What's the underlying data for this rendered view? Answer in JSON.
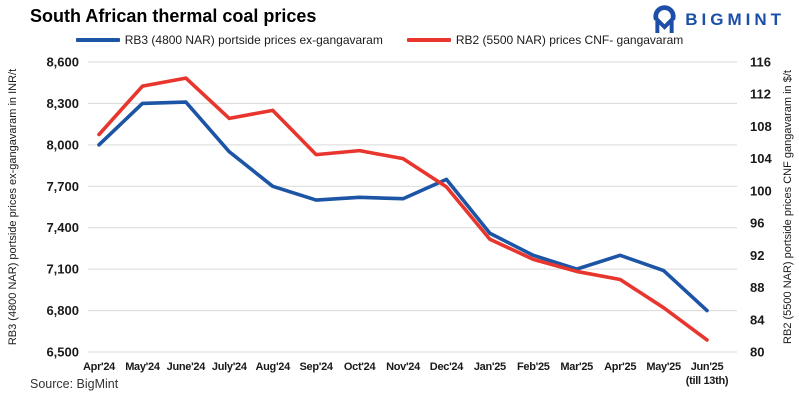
{
  "header": {
    "title": "South African thermal coal prices",
    "brand": "BIGMINT"
  },
  "source": "Source: BigMint",
  "colors": {
    "rb3_blue": "#1C55A5",
    "rb2_red": "#E8362E",
    "brand_blue": "#1D4FA8",
    "grid": "#DADADA",
    "text": "#1A1A1A"
  },
  "chart_data": {
    "type": "line",
    "title": "South African thermal coal prices",
    "grid": true,
    "legend_position": "top",
    "categories": [
      "Apr'24",
      "May'24",
      "June'24",
      "July'24",
      "Aug'24",
      "Sep'24",
      "Oct'24",
      "Nov'24",
      "Dec'24",
      "Jan'25",
      "Feb'25",
      "Mar'25",
      "Apr'25",
      "May'25",
      "Jun'25\n(till 13th)"
    ],
    "series": [
      {
        "name": "RB3 (4800 NAR) portside prices ex-gangavaram",
        "axis": "left",
        "unit": "INR/t",
        "color_key": "rb3_blue",
        "values": [
          8000,
          8300,
          8310,
          7950,
          7700,
          7600,
          7620,
          7610,
          7750,
          7360,
          7200,
          7100,
          7200,
          7090,
          6800
        ]
      },
      {
        "name": "RB2 (5500 NAR) prices CNF- gangavaram",
        "axis": "right",
        "unit": "$/t",
        "color_key": "rb2_red",
        "values": [
          107,
          113,
          114,
          109,
          110,
          104.5,
          105,
          104,
          100.5,
          94,
          91.5,
          90,
          89,
          85.5,
          81.5
        ]
      }
    ],
    "left_axis": {
      "label": "RB3 (4800 NAR) portside prices ex-gangavaram in INR/t",
      "min": 6500,
      "max": 8600,
      "ticks": [
        {
          "value": 8600,
          "label": "8,600"
        },
        {
          "value": 8300,
          "label": "8,300"
        },
        {
          "value": 8000,
          "label": "8,000"
        },
        {
          "value": 7700,
          "label": "7,700"
        },
        {
          "value": 7400,
          "label": "7,400"
        },
        {
          "value": 7100,
          "label": "7,100"
        },
        {
          "value": 6800,
          "label": "6,800"
        },
        {
          "value": 6500,
          "label": "6,500"
        }
      ]
    },
    "right_axis": {
      "label": "RB2 (5500 NAR) portside prices CNF gangavaram in $/t",
      "min": 80,
      "max": 116,
      "ticks": [
        {
          "value": 116,
          "label": "116"
        },
        {
          "value": 112,
          "label": "112"
        },
        {
          "value": 108,
          "label": "108"
        },
        {
          "value": 104,
          "label": "104"
        },
        {
          "value": 100,
          "label": "100"
        },
        {
          "value": 96,
          "label": "96"
        },
        {
          "value": 92,
          "label": "92"
        },
        {
          "value": 88,
          "label": "88"
        },
        {
          "value": 84,
          "label": "84"
        },
        {
          "value": 80,
          "label": "80"
        }
      ]
    }
  }
}
